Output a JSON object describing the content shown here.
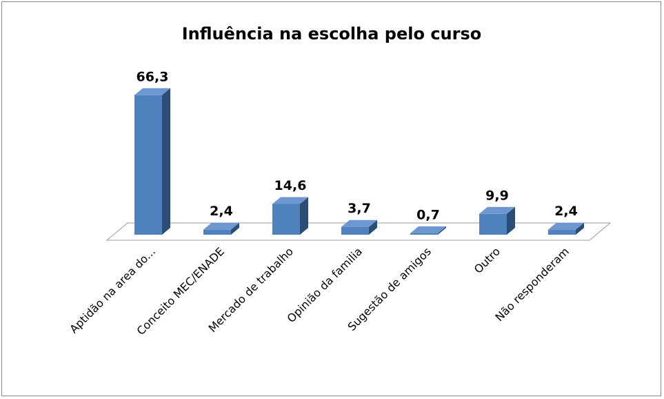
{
  "chart_data": {
    "type": "bar3d",
    "title": "Influência na escolha pelo curso",
    "categories": [
      "Aptidão na area do...",
      "Conceito MEC/ENADE",
      "Mercado de trabalho",
      "Opinião da familia",
      "Sugestão de amigos",
      "Outro",
      "Não responderam"
    ],
    "values": [
      66.3,
      2.4,
      14.6,
      3.7,
      0.7,
      9.9,
      2.4
    ],
    "value_labels": [
      "66,3",
      "2,4",
      "14,6",
      "3,7",
      "0,7",
      "9,9",
      "2,4"
    ],
    "color": "#4f81bd"
  }
}
